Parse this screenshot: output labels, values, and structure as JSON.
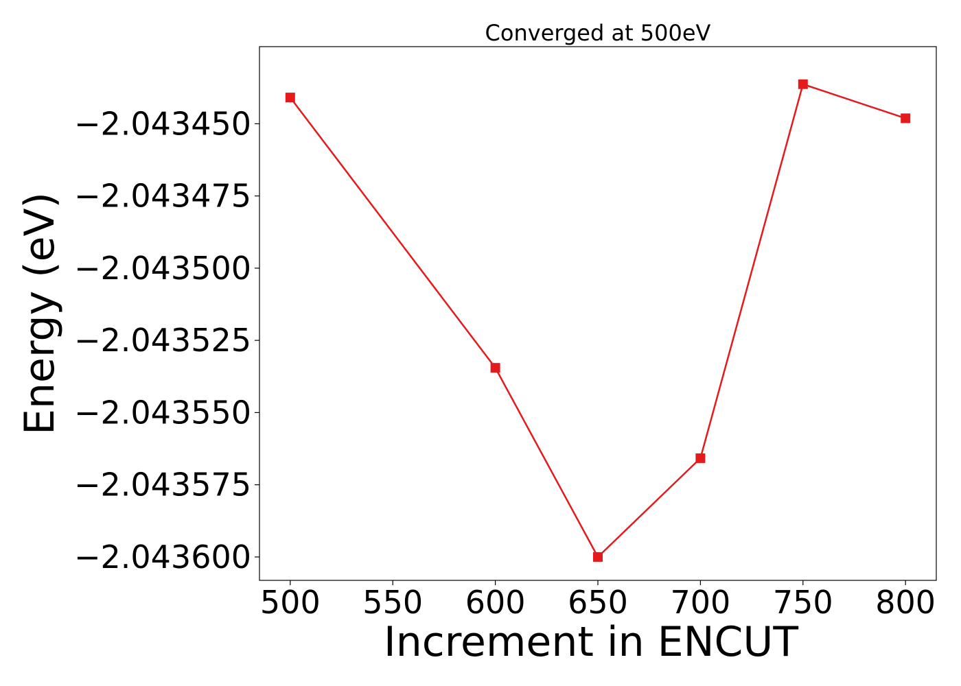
{
  "chart_data": {
    "type": "line",
    "title": "Converged at 500eV",
    "xlabel": "Increment in ENCUT",
    "ylabel": "Energy (eV)",
    "x": [
      500,
      600,
      650,
      700,
      750,
      800
    ],
    "series": [
      {
        "values": [
          -2.0434409,
          -2.0435345,
          -2.0436,
          -2.0435658,
          -2.0434363,
          -2.0434481
        ],
        "color": "#e41a1c",
        "marker": "square"
      }
    ],
    "xticks": [
      500,
      550,
      600,
      650,
      700,
      750,
      800
    ],
    "xtick_labels": [
      "500",
      "550",
      "600",
      "650",
      "700",
      "750",
      "800"
    ],
    "yticks": [
      -2.04345,
      -2.043475,
      -2.0435,
      -2.043525,
      -2.04355,
      -2.043575,
      -2.0436
    ],
    "ytick_labels": [
      "−2.043450",
      "−2.043475",
      "−2.043500",
      "−2.043525",
      "−2.043550",
      "−2.043575",
      "−2.043600"
    ],
    "xlim": [
      485,
      815
    ],
    "ylim": [
      -2.0436081,
      -2.0434233
    ],
    "grid": false
  }
}
